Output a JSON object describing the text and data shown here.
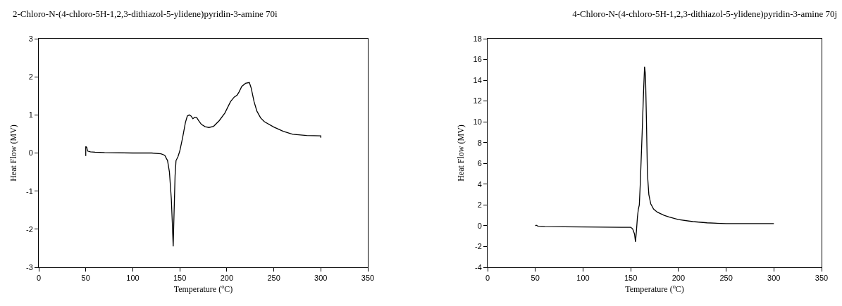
{
  "chart_data": [
    {
      "type": "line",
      "title": "2-Chloro-N-(4-chloro-5H-1,2,3-dithiazol-5-ylidene)pyridin-3-amine 70i",
      "xlabel": "Temperature ($^{o}$C)",
      "ylabel": "Heat Flow (MV)",
      "xlim": [
        0,
        350
      ],
      "xticks": [
        0,
        50,
        100,
        150,
        200,
        250,
        300,
        350
      ],
      "ylim": [
        -3,
        3
      ],
      "yticks": [
        -3,
        -2,
        -1,
        0,
        1,
        2,
        3
      ],
      "grid": false,
      "marker": "none",
      "line_style": "solid",
      "series": [
        {
          "color": "#000000",
          "x": [
            50,
            50,
            51,
            52,
            55,
            60,
            70,
            100,
            120,
            130,
            134,
            137,
            139,
            141,
            142,
            143,
            144,
            145,
            146,
            148,
            150,
            153,
            156,
            158,
            160,
            162,
            164,
            166,
            168,
            170,
            173,
            177,
            181,
            186,
            192,
            198,
            204,
            208,
            211,
            213,
            216,
            220,
            224,
            226,
            229,
            232,
            236,
            240,
            250,
            260,
            270,
            285,
            300,
            300
          ],
          "values": [
            -0.08,
            0.17,
            0.15,
            0.05,
            0.03,
            0.02,
            0.01,
            0,
            0,
            -0.02,
            -0.06,
            -0.2,
            -0.5,
            -1.2,
            -1.8,
            -2.45,
            -1.5,
            -0.6,
            -0.2,
            -0.1,
            0.05,
            0.4,
            0.8,
            0.97,
            1.0,
            0.97,
            0.9,
            0.94,
            0.93,
            0.85,
            0.75,
            0.69,
            0.67,
            0.7,
            0.85,
            1.05,
            1.35,
            1.47,
            1.52,
            1.6,
            1.75,
            1.83,
            1.85,
            1.7,
            1.35,
            1.1,
            0.92,
            0.82,
            0.68,
            0.57,
            0.49,
            0.46,
            0.45,
            0.4
          ]
        }
      ]
    },
    {
      "type": "line",
      "title": "4-Chloro-N-(4-chloro-5H-1,2,3-dithiazol-5-ylidene)pyridin-3-amine 70j",
      "xlabel": "Temperature ($^{o}$C)",
      "ylabel": "Heat Flow (MV)",
      "xlim": [
        0,
        350
      ],
      "xticks": [
        0,
        50,
        100,
        150,
        200,
        250,
        300,
        350
      ],
      "ylim": [
        -4,
        18
      ],
      "yticks": [
        -4,
        -2,
        0,
        2,
        4,
        6,
        8,
        10,
        12,
        14,
        16,
        18
      ],
      "grid": false,
      "marker": "none",
      "line_style": "solid",
      "series": [
        {
          "color": "#000000",
          "x": [
            50,
            51,
            53,
            60,
            100,
            140,
            150,
            152,
            154,
            155,
            156,
            157,
            158,
            159,
            160,
            162,
            163.5,
            164.5,
            165.5,
            166.5,
            167.5,
            169,
            171,
            174,
            178,
            185,
            190,
            200,
            215,
            230,
            250,
            300
          ],
          "values": [
            0,
            0.05,
            -0.05,
            -0.08,
            -0.12,
            -0.15,
            -0.15,
            -0.3,
            -0.8,
            -1.55,
            -0.5,
            0.8,
            1.6,
            2,
            4,
            9,
            13,
            15.3,
            14.5,
            10,
            5,
            3,
            2.1,
            1.6,
            1.3,
            1.0,
            0.85,
            0.6,
            0.4,
            0.28,
            0.2,
            0.2
          ]
        }
      ]
    }
  ]
}
